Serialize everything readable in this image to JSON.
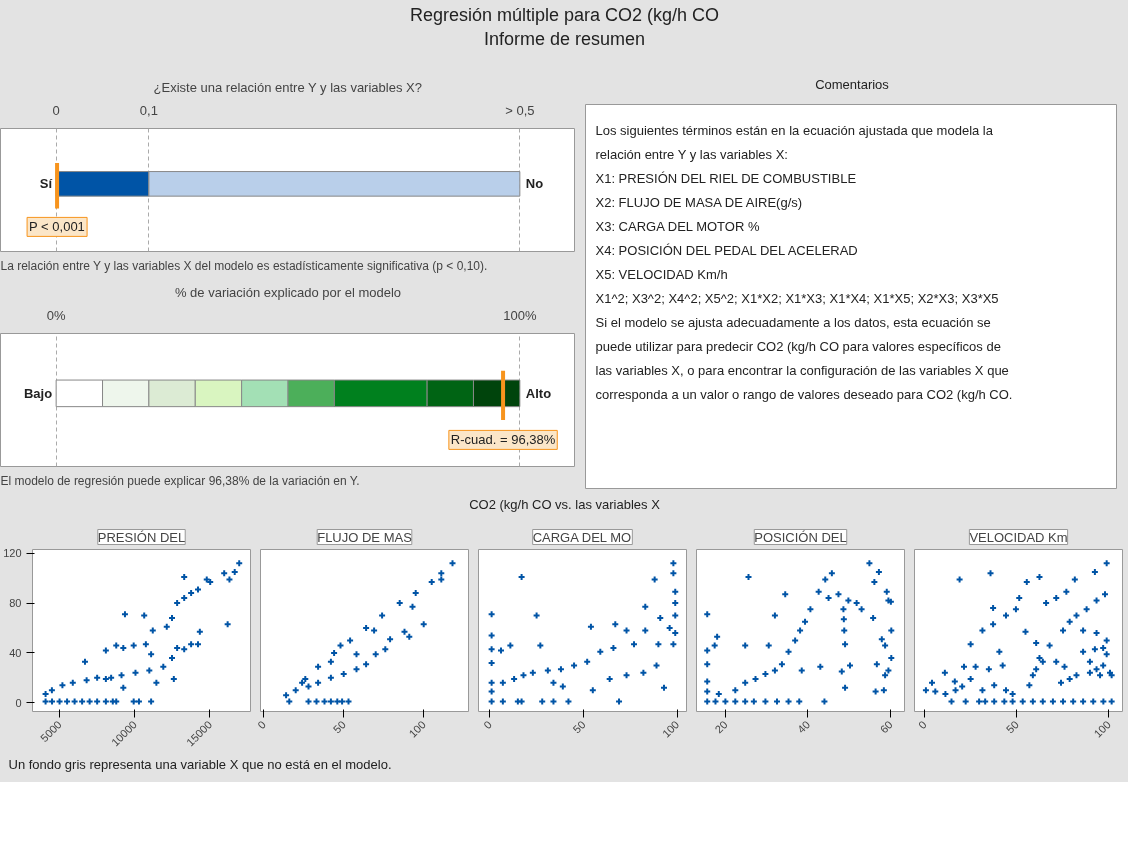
{
  "chart_data": [
    {
      "type": "other",
      "title": "Regresión múltiple para CO2 (kg/h CO",
      "subtitle": "Informe de resumen"
    },
    {
      "type": "bar",
      "orientation": "horizontal",
      "stacked": true,
      "categories": [
        null
      ],
      "title": "¿Existe una relación entre Y y las variables X?",
      "xlim": [
        -0.06,
        0.56
      ],
      "xticks": [
        0,
        {
          "value": 0.1,
          "label": "0,1"
        },
        {
          "value": 0.5,
          "label": "> 0,5"
        }
      ],
      "grid": "x",
      "series": [
        {
          "color": "#0054a6",
          "values": [
            0.1
          ]
        },
        {
          "color": "#b9cfea",
          "values": [
            0.4
          ]
        }
      ],
      "ref_lines": [
        {
          "axis": "x",
          "value": 0.001,
          "label": "P < 0,001",
          "color": "#f7941d"
        }
      ],
      "annotations": [
        {
          "text": "Sí",
          "x": 0
        },
        {
          "text": "No",
          "x": 0.5
        },
        "La relación entre Y y las variables X del modelo es estadísticamente significativa (p < 0,10)."
      ]
    },
    {
      "type": "bar",
      "orientation": "horizontal",
      "stacked": true,
      "categories": [
        null
      ],
      "title": "% de variación explicado por el modelo",
      "xlim": [
        -12,
        112
      ],
      "xticks": [
        {
          "value": 0,
          "label": "0%"
        },
        {
          "value": 100,
          "label": "100%"
        }
      ],
      "grid": "x",
      "series": [
        {
          "color": "#ffffff",
          "values": [
            10
          ]
        },
        {
          "color": "#eef6ec",
          "values": [
            10
          ]
        },
        {
          "color": "#dcebd4",
          "values": [
            10
          ]
        },
        {
          "color": "#d9f5c0",
          "values": [
            10
          ]
        },
        {
          "color": "#a3e0b5",
          "values": [
            10
          ]
        },
        {
          "color": "#4caf5a",
          "values": [
            10
          ]
        },
        {
          "color": "#00801e",
          "values": [
            20
          ]
        },
        {
          "color": "#006414",
          "values": [
            10
          ]
        },
        {
          "color": "#00440c",
          "values": [
            10
          ]
        }
      ],
      "ref_lines": [
        {
          "axis": "x",
          "value": 96.38,
          "label": "R-cuad. = 96,38%",
          "color": "#f7941d"
        }
      ],
      "annotations": [
        {
          "text": "Bajo",
          "x": 0
        },
        {
          "text": "Alto",
          "x": 100
        },
        "El modelo de regresión puede explicar 96,38% de la variación en Y."
      ]
    },
    {
      "type": "other",
      "title": "Comentarios",
      "annotations": [
        "Los siguientes términos están en la ecuación ajustada que modela la",
        "relación entre Y y las variables X:",
        "X1: PRESIÓN DEL RIEL DE COMBUSTIBLE",
        "X2: FLUJO DE MASA DE AIRE(g/s)",
        "X3: CARGA DEL MOTOR %",
        "X4: POSICIÓN DEL PEDAL DEL ACELERAD",
        "X5: VELOCIDAD Km/h",
        "X1^2; X3^2; X4^2; X5^2; X1*X2; X1*X3; X1*X4; X1*X5; X2*X3; X3*X5",
        "Si el modelo se ajusta adecuadamente a los datos, esta ecuación se",
        "puede utilizar para predecir CO2 (kg/h CO para valores específicos de",
        "las variables X, o para encontrar la configuración de las variables X que",
        "corresponda a un valor o rango de valores deseado para CO2 (kg/h CO."
      ]
    },
    {
      "type": "other",
      "title": "CO2 (kg/h CO vs. las variables X"
    },
    {
      "type": "scatter",
      "title": "PRESIÓN DEL",
      "color": "#0054a6",
      "marker": "cross",
      "xlim": [
        3200,
        17700
      ],
      "xticks": [
        5000,
        10000,
        15000
      ],
      "ylim": [
        -7,
        123
      ],
      "yticks": [
        0,
        40,
        80,
        120
      ],
      "x": [
        4070,
        4500,
        5000,
        5500,
        6000,
        6500,
        7000,
        7500,
        8080,
        8540,
        8770,
        9930,
        10280,
        11090,
        4070,
        4490,
        5190,
        5880,
        6800,
        7500,
        8430,
        9120,
        10050,
        10970,
        11900,
        12480,
        12820,
        13290,
        13750,
        14210,
        12130,
        12480,
        12820,
        13290,
        13750,
        14210,
        13290,
        14790,
        15020,
        15950,
        16300,
        16650,
        16950,
        16180,
        14330,
        6690,
        8080,
        8770,
        9240,
        9350,
        9930,
        10630,
        11090,
        10740,
        11200,
        8080,
        9240,
        11440,
        12600
      ],
      "values": [
        1,
        1,
        1,
        1,
        1,
        1,
        1,
        1,
        1,
        1,
        1,
        1,
        1,
        1,
        7,
        10,
        14,
        16,
        18,
        20,
        20,
        22,
        24,
        26,
        29,
        36,
        44,
        43,
        47,
        47,
        61,
        68,
        80,
        84,
        88,
        91,
        101,
        99,
        97,
        104,
        99,
        105,
        112,
        63,
        57,
        33,
        42,
        46,
        44,
        71,
        46,
        70,
        39,
        47,
        58,
        19,
        12,
        16,
        19
      ]
    },
    {
      "type": "scatter",
      "title": "FLUJO DE MAS",
      "color": "#0054a6",
      "marker": "cross",
      "xlim": [
        -2,
        128
      ],
      "xticks": [
        0,
        50,
        100
      ],
      "ylim": [
        -7,
        123
      ],
      "yticks": [
        0,
        40,
        80,
        120
      ],
      "tick_labels": "x",
      "x": [
        16,
        28,
        33,
        38,
        42,
        46,
        49,
        53,
        14,
        20,
        28,
        34,
        42,
        50,
        58,
        64,
        70,
        76,
        24,
        34,
        44,
        54,
        64,
        74,
        85,
        95,
        105,
        111,
        118,
        26,
        48,
        42,
        58,
        69,
        79,
        88,
        91,
        93,
        100,
        111
      ],
      "values": [
        1,
        1,
        1,
        1,
        1,
        1,
        1,
        1,
        6,
        10,
        13,
        16,
        20,
        23,
        27,
        31,
        39,
        43,
        16,
        29,
        40,
        50,
        60,
        70,
        80,
        88,
        97,
        104,
        112,
        19,
        46,
        33,
        39,
        58,
        51,
        57,
        53,
        77,
        63,
        99
      ]
    },
    {
      "type": "scatter",
      "title": "CARGA DEL MO",
      "color": "#0054a6",
      "marker": "cross",
      "xlim": [
        -6,
        105
      ],
      "xticks": [
        0,
        50,
        100
      ],
      "ylim": [
        -7,
        123
      ],
      "yticks": [
        0,
        40,
        80,
        120
      ],
      "tick_labels": "x",
      "x": [
        1,
        7,
        15,
        17,
        28,
        34,
        42,
        69,
        1,
        1,
        1,
        1,
        1,
        1,
        6,
        11,
        17,
        25,
        27,
        7,
        13,
        18,
        23,
        31,
        38,
        45,
        52,
        59,
        66,
        54,
        67,
        73,
        77,
        83,
        83,
        88,
        91,
        93,
        89,
        82,
        73,
        64,
        55,
        98,
        98,
        99,
        99,
        99,
        99,
        98,
        96,
        90,
        34,
        39
      ],
      "values": [
        1,
        1,
        1,
        1,
        1,
        1,
        1,
        1,
        16,
        9,
        54,
        71,
        43,
        32,
        42,
        46,
        101,
        70,
        46,
        16,
        19,
        22,
        24,
        26,
        27,
        30,
        33,
        41,
        44,
        61,
        63,
        58,
        47,
        77,
        58,
        99,
        68,
        12,
        30,
        24,
        22,
        19,
        10,
        112,
        104,
        89,
        80,
        70,
        56,
        47,
        60,
        47,
        16,
        13
      ]
    },
    {
      "type": "scatter",
      "title": "POSICIÓN DEL",
      "color": "#0054a6",
      "marker": "cross",
      "xlim": [
        13,
        63.4
      ],
      "xticks": [
        20,
        40,
        60
      ],
      "ylim": [
        -7,
        123
      ],
      "yticks": [
        0,
        40,
        80,
        120
      ],
      "tick_labels": "x",
      "x": [
        15.6,
        17.6,
        20,
        22.4,
        24.8,
        26.9,
        29.7,
        32.5,
        35.3,
        37.9,
        44,
        15.6,
        15.6,
        15.6,
        15.6,
        15.6,
        18,
        17.4,
        18.4,
        22.4,
        24.8,
        27.3,
        29.7,
        32,
        33.7,
        35.3,
        36.9,
        38.1,
        39.3,
        40.6,
        42.6,
        44.2,
        45.8,
        25.6,
        34.5,
        32,
        24.8,
        30.5,
        38.5,
        43,
        45,
        47.4,
        49.8,
        51.8,
        53,
        48.6,
        48.7,
        48.8,
        49,
        48.2,
        49,
        50.2,
        54.9,
        56.1,
        57.2,
        59.1,
        59.5,
        60.1,
        55.8,
        60.2,
        57.9,
        58.7,
        60.2,
        56.7,
        58.7,
        59.5,
        56.4,
        58.4
      ],
      "values": [
        1,
        1,
        1,
        1,
        1,
        1,
        1,
        1,
        1,
        1,
        1,
        71,
        42,
        31,
        17,
        9,
        53,
        46,
        7,
        10,
        16,
        19,
        23,
        26,
        31,
        41,
        50,
        58,
        65,
        75,
        89,
        99,
        104,
        101,
        87,
        70,
        46,
        46,
        26,
        29,
        84,
        87,
        82,
        80,
        75,
        75,
        67,
        58,
        47,
        25,
        12,
        30,
        112,
        97,
        105,
        89,
        82,
        81,
        68,
        58,
        51,
        46,
        36,
        31,
        22,
        26,
        9,
        10
      ]
    },
    {
      "type": "scatter",
      "title": "VELOCIDAD Km",
      "color": "#0054a6",
      "marker": "cross",
      "xlim": [
        -5.5,
        107.5
      ],
      "xticks": [
        0,
        50,
        100
      ],
      "ylim": [
        -7,
        123
      ],
      "yticks": [
        0,
        40,
        80,
        120
      ],
      "tick_labels": "x",
      "x": [
        14.6,
        22.3,
        29.6,
        32.9,
        37.8,
        43.3,
        47.8,
        53.3,
        58.8,
        64.2,
        69.7,
        75.2,
        80.7,
        86.1,
        91.6,
        97.1,
        101.6,
        0.7,
        4,
        5.8,
        11,
        11.3,
        16.4,
        16.8,
        20.4,
        21.4,
        25,
        25,
        27.7,
        19,
        31.4,
        35.8,
        37.2,
        37.2,
        31.4,
        34.9,
        37.8,
        40.6,
        42.4,
        44.2,
        47.8,
        44.2,
        49.6,
        51.4,
        55.5,
        62.4,
        54.8,
        56.9,
        58.8,
        60.6,
        62.4,
        60.6,
        67.9,
        64.2,
        71.5,
        76,
        74.1,
        78.8,
        82.5,
        66,
        71.5,
        77,
        81.6,
        75.2,
        78.8,
        82.5,
        88,
        93.4,
        98,
        98.9,
        92.5,
        86.1,
        93.4,
        86.1,
        89.8,
        93.4,
        97,
        98.9,
        100.7,
        95.3,
        89.8,
        97,
        92.5,
        98.9,
        101.6
      ],
      "values": [
        1,
        1,
        1,
        1,
        1,
        1,
        1,
        1,
        1,
        1,
        1,
        1,
        1,
        1,
        1,
        1,
        1,
        10,
        16,
        9,
        24,
        7,
        17,
        10,
        13,
        29,
        19,
        47,
        29,
        99,
        58,
        104,
        76,
        63,
        10,
        27,
        14,
        41,
        30,
        10,
        7,
        70,
        75,
        84,
        97,
        101,
        57,
        14,
        22,
        27,
        36,
        48,
        46,
        33,
        33,
        29,
        16,
        19,
        22,
        80,
        84,
        89,
        99,
        58,
        65,
        70,
        75,
        82,
        87,
        112,
        105,
        58,
        56,
        41,
        33,
        27,
        30,
        39,
        24,
        22,
        24,
        44,
        43,
        50,
        22
      ]
    },
    {
      "type": "other",
      "annotations": [
        "Un fondo gris representa una variable X que no está en el modelo."
      ]
    }
  ]
}
